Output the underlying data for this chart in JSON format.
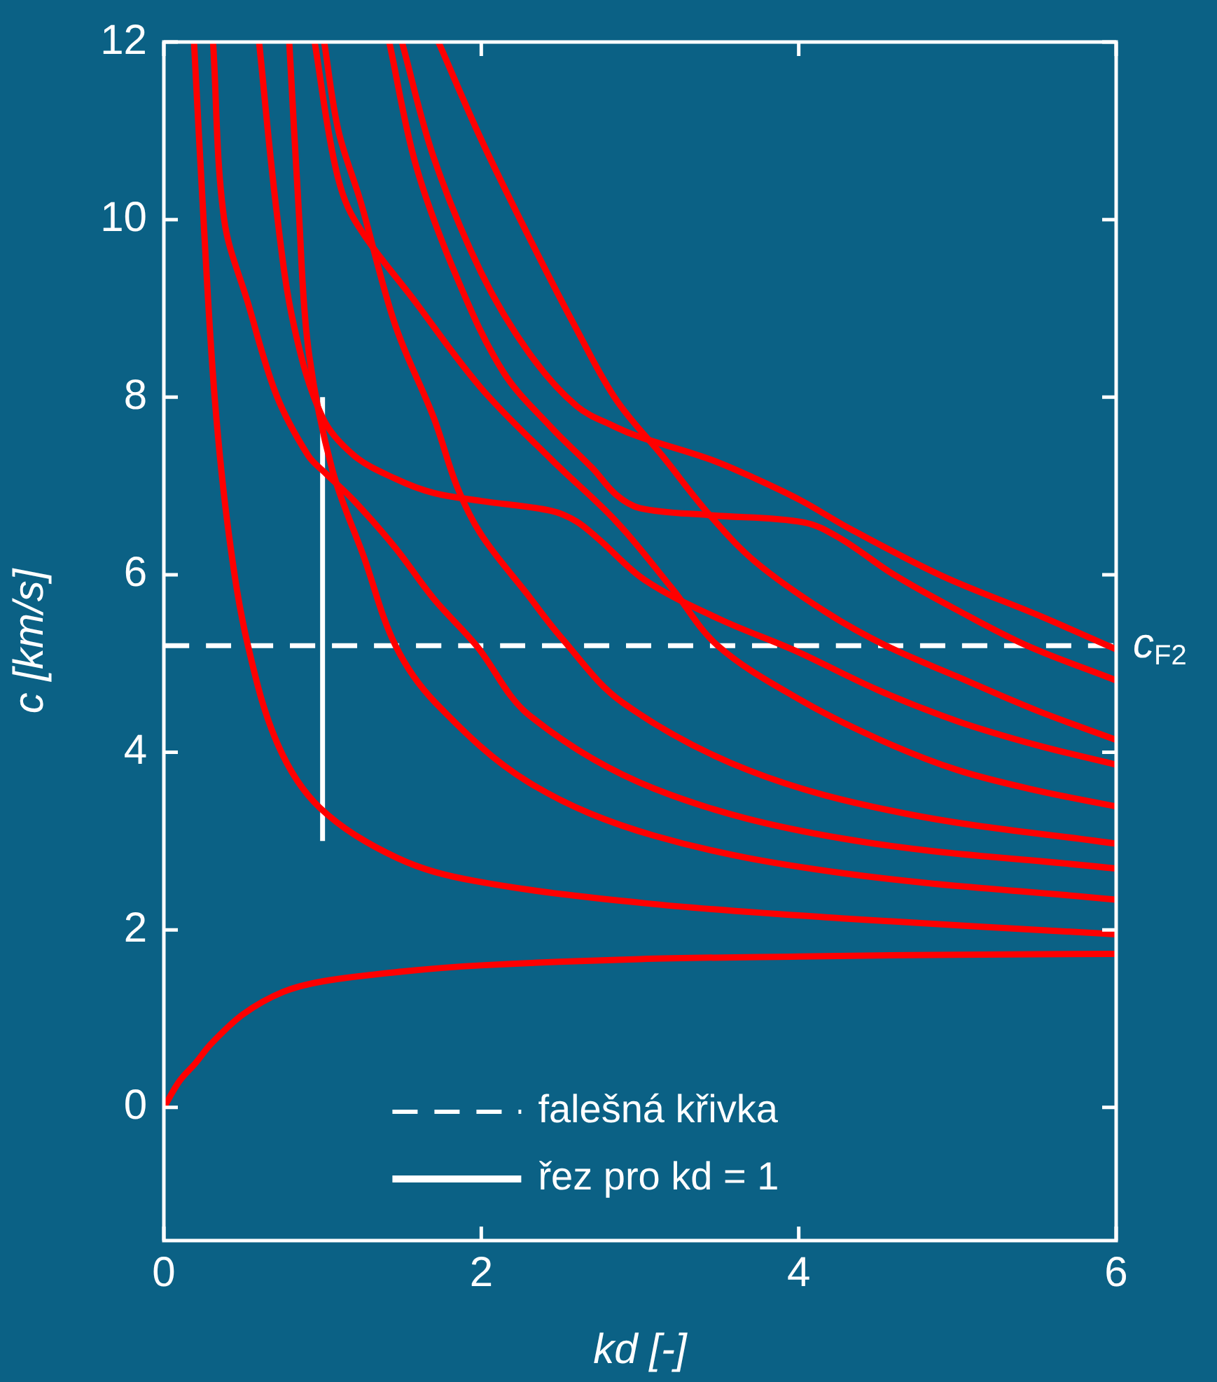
{
  "chart_data": {
    "type": "line",
    "xlabel": "kd [-]",
    "ylabel": "c [km/s]",
    "xlim": [
      0,
      6
    ],
    "ylim": [
      -1.5,
      12
    ],
    "xticks": [
      0,
      2,
      4,
      6
    ],
    "yticks": [
      0,
      2,
      4,
      6,
      8,
      10,
      12
    ],
    "grid": false,
    "marker": "none",
    "legend": "bottom",
    "line_style": "solid",
    "series": [
      {
        "color": "#ff0000",
        "x": [
          0,
          0.1,
          0.2,
          0.3,
          0.5,
          0.75,
          1,
          1.5,
          2,
          3,
          4,
          5,
          6
        ],
        "values": [
          0,
          0.3,
          0.5,
          0.72,
          1.05,
          1.3,
          1.42,
          1.53,
          1.6,
          1.67,
          1.7,
          1.72,
          1.73
        ]
      },
      {
        "color": "#ff0000",
        "x": [
          0.19,
          0.25,
          0.32,
          0.41,
          0.53,
          0.72,
          0.98,
          1.47,
          1.96,
          3.03,
          4.27,
          6
        ],
        "values": [
          12,
          10,
          8,
          6.45,
          5.2,
          4.08,
          3.38,
          2.81,
          2.55,
          2.3,
          2.13,
          1.95
        ]
      },
      {
        "color": "#ff0000",
        "x": [
          0.31,
          0.38,
          0.53,
          0.71,
          0.91,
          1.02,
          1.2,
          1.46,
          1.7,
          1.97,
          2.3,
          3.09,
          4.27,
          6
        ],
        "values": [
          12,
          10,
          9.06,
          8.02,
          7.34,
          7.14,
          6.83,
          6.3,
          5.73,
          5.2,
          4.42,
          3.59,
          3.03,
          2.69
        ]
      },
      {
        "color": "#ff0000",
        "x": [
          0.79,
          0.85,
          0.91,
          1.06,
          1.26,
          1.46,
          1.71,
          2.3,
          3.09,
          4.27,
          6
        ],
        "values": [
          12,
          10.1,
          8.55,
          7.19,
          6.2,
          5.2,
          4.56,
          3.66,
          3.06,
          2.64,
          2.34
        ]
      },
      {
        "color": "#ff0000",
        "x": [
          1.01,
          1.1,
          1.24,
          1.46,
          1.7,
          1.85,
          2,
          2.29,
          2.5,
          2.89,
          3.68,
          4.67,
          6
        ],
        "values": [
          12,
          11,
          10.2,
          8.8,
          7.77,
          6.98,
          6.45,
          5.78,
          5.3,
          4.56,
          3.8,
          3.31,
          2.97
        ]
      },
      {
        "color": "#ff0000",
        "x": [
          0.95,
          1.08,
          1.2,
          1.59,
          2,
          2.44,
          2.85,
          3.2,
          3.49,
          4,
          4.5,
          5,
          5.5,
          6
        ],
        "values": [
          12,
          10.6,
          10,
          9.06,
          8.1,
          7.3,
          6.6,
          5.85,
          5.2,
          4.6,
          4.15,
          3.8,
          3.57,
          3.39
        ]
      },
      {
        "color": "#ff0000",
        "x": [
          0.6,
          0.71,
          0.82,
          1,
          1.2,
          1.46,
          1.7,
          2,
          2.44,
          2.6,
          2.74,
          3.03,
          3.5,
          3.97,
          4.5,
          5,
          5.5,
          6
        ],
        "values": [
          12,
          10.1,
          8.8,
          7.77,
          7.34,
          7.08,
          6.92,
          6.83,
          6.72,
          6.6,
          6.4,
          5.94,
          5.5,
          5.15,
          4.7,
          4.35,
          4.08,
          3.86
        ]
      },
      {
        "color": "#ff0000",
        "x": [
          1.42,
          1.59,
          1.85,
          2.14,
          2.44,
          2.7,
          2.85,
          3,
          3.44,
          4.03,
          4.26,
          4.6,
          5,
          5.44,
          6
        ],
        "values": [
          12,
          10.6,
          9.33,
          8.28,
          7.66,
          7.2,
          6.9,
          6.75,
          6.67,
          6.59,
          6.41,
          6,
          5.6,
          5.2,
          4.81
        ]
      },
      {
        "color": "#ff0000",
        "x": [
          1.5,
          1.7,
          2,
          2.3,
          2.6,
          2.85,
          3,
          3.44,
          3.73,
          4.02,
          4.32,
          4.91,
          5.5,
          6
        ],
        "values": [
          12,
          10.7,
          9.4,
          8.5,
          7.9,
          7.66,
          7.55,
          7.3,
          7.08,
          6.83,
          6.52,
          5.98,
          5.55,
          5.16
        ]
      },
      {
        "color": "#ff0000",
        "x": [
          1.73,
          2,
          2.29,
          2.59,
          2.85,
          3.14,
          3.44,
          3.73,
          4.17,
          4.55,
          5,
          5.5,
          6
        ],
        "values": [
          12,
          10.9,
          9.84,
          8.8,
          7.97,
          7.34,
          6.67,
          6.14,
          5.58,
          5.2,
          4.85,
          4.47,
          4.14
        ]
      },
      {
        "name": "falešná křivka",
        "color": "#ffffff",
        "line_style": "dashed",
        "x": [
          0,
          6
        ],
        "values": [
          5.2,
          5.2
        ]
      },
      {
        "name": "řez pro kd = 1",
        "color": "#ffffff",
        "x": [
          1,
          1
        ],
        "values": [
          3,
          8
        ]
      }
    ],
    "annotations": [
      {
        "text": "c$_{F2}$",
        "x": 6,
        "y": 5.2
      }
    ]
  }
}
